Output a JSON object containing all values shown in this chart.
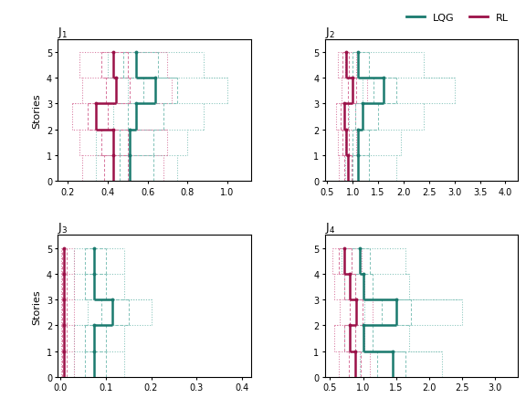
{
  "subplots": [
    {
      "title": "J$_1$",
      "xlim": [
        0.15,
        1.12
      ],
      "xticks": [
        0.2,
        0.4,
        0.6,
        0.8,
        1.0
      ],
      "lqg_median": [
        0.51,
        0.51,
        0.54,
        0.64,
        0.54
      ],
      "lqg_q1": [
        0.46,
        0.46,
        0.5,
        0.58,
        0.48
      ],
      "lqg_q3": [
        0.63,
        0.63,
        0.68,
        0.75,
        0.65
      ],
      "lqg_min": [
        0.34,
        0.34,
        0.43,
        0.5,
        0.4
      ],
      "lqg_max": [
        0.75,
        0.8,
        0.88,
        1.0,
        0.88
      ],
      "rl_median": [
        0.43,
        0.43,
        0.34,
        0.44,
        0.43
      ],
      "rl_q1": [
        0.38,
        0.37,
        0.3,
        0.39,
        0.37
      ],
      "rl_q3": [
        0.5,
        0.5,
        0.4,
        0.51,
        0.5
      ],
      "rl_min": [
        0.27,
        0.26,
        0.22,
        0.27,
        0.26
      ],
      "rl_max": [
        0.68,
        0.7,
        0.54,
        0.72,
        0.7
      ]
    },
    {
      "title": "J$_2$",
      "xlim": [
        0.45,
        4.25
      ],
      "xticks": [
        0.5,
        1.0,
        1.5,
        2.0,
        2.5,
        3.0,
        3.5,
        4.0
      ],
      "lqg_median": [
        1.1,
        1.1,
        1.2,
        1.6,
        1.1
      ],
      "lqg_q1": [
        1.0,
        1.0,
        1.05,
        1.4,
        1.0
      ],
      "lqg_q3": [
        1.32,
        1.32,
        1.5,
        1.85,
        1.32
      ],
      "lqg_min": [
        0.85,
        0.85,
        0.92,
        1.2,
        0.85
      ],
      "lqg_max": [
        1.85,
        1.95,
        2.4,
        3.0,
        2.4
      ],
      "rl_median": [
        0.9,
        0.87,
        0.83,
        1.0,
        0.87
      ],
      "rl_q1": [
        0.83,
        0.8,
        0.77,
        0.9,
        0.8
      ],
      "rl_q3": [
        0.97,
        0.93,
        0.9,
        1.07,
        0.93
      ],
      "rl_min": [
        0.72,
        0.7,
        0.68,
        0.78,
        0.7
      ],
      "rl_max": [
        1.1,
        1.07,
        1.05,
        1.28,
        1.07
      ]
    },
    {
      "title": "J$_3$",
      "xlim": [
        -0.005,
        0.42
      ],
      "xticks": [
        0.0,
        0.1,
        0.2,
        0.3,
        0.4
      ],
      "lqg_median": [
        0.075,
        0.075,
        0.115,
        0.075,
        0.075
      ],
      "lqg_q1": [
        0.055,
        0.055,
        0.09,
        0.055,
        0.055
      ],
      "lqg_q3": [
        0.1,
        0.1,
        0.15,
        0.1,
        0.1
      ],
      "lqg_min": [
        0.03,
        0.03,
        0.06,
        0.03,
        0.03
      ],
      "lqg_max": [
        0.14,
        0.14,
        0.2,
        0.14,
        0.14
      ],
      "rl_median": [
        0.008,
        0.008,
        0.008,
        0.008,
        0.008
      ],
      "rl_q1": [
        0.005,
        0.005,
        0.005,
        0.005,
        0.005
      ],
      "rl_q3": [
        0.015,
        0.015,
        0.015,
        0.015,
        0.015
      ],
      "rl_min": [
        0.002,
        0.002,
        0.002,
        0.002,
        0.002
      ],
      "rl_max": [
        0.03,
        0.03,
        0.03,
        0.03,
        0.03
      ]
    },
    {
      "title": "J$_4$",
      "xlim": [
        0.42,
        3.35
      ],
      "xticks": [
        0.5,
        1.0,
        1.5,
        2.0,
        2.5,
        3.0
      ],
      "lqg_median": [
        1.45,
        1.0,
        1.5,
        1.0,
        0.95
      ],
      "lqg_q1": [
        1.22,
        0.88,
        1.28,
        0.88,
        0.82
      ],
      "lqg_q3": [
        1.65,
        1.15,
        1.72,
        1.15,
        1.1
      ],
      "lqg_min": [
        0.95,
        0.72,
        1.02,
        0.72,
        0.68
      ],
      "lqg_max": [
        2.2,
        1.7,
        2.5,
        1.7,
        1.65
      ],
      "rl_median": [
        0.88,
        0.8,
        0.9,
        0.8,
        0.72
      ],
      "rl_q1": [
        0.78,
        0.72,
        0.8,
        0.72,
        0.64
      ],
      "rl_q3": [
        0.97,
        0.88,
        0.99,
        0.88,
        0.82
      ],
      "rl_min": [
        0.63,
        0.57,
        0.65,
        0.57,
        0.53
      ],
      "rl_max": [
        1.1,
        1.02,
        1.15,
        1.02,
        0.98
      ]
    }
  ],
  "lqg_color": "#1a7a6e",
  "rl_color": "#9b1148",
  "lqg_light": "#85c4bb",
  "rl_light": "#d97aa0",
  "ylabel": "Stories",
  "legend_lqg": "LQG",
  "legend_rl": "RL"
}
